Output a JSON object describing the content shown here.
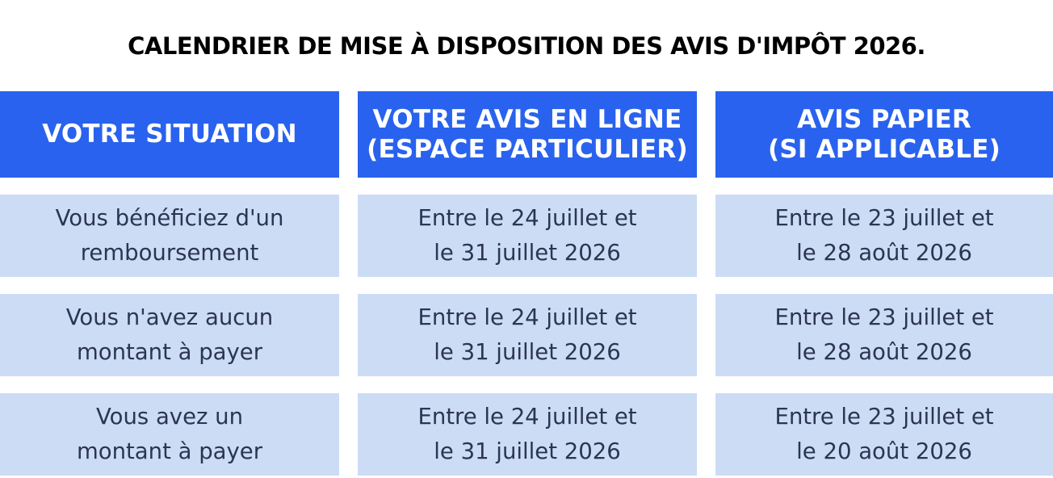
{
  "title": "CALENDRIER DE MISE À DISPOSITION DES AVIS D'IMPÔT 2026.",
  "headers": [
    {
      "lines": [
        "VOTRE SITUATION"
      ]
    },
    {
      "lines": [
        "VOTRE AVIS EN LIGNE",
        "(ESPACE PARTICULIER)"
      ]
    },
    {
      "lines": [
        "AVIS PAPIER",
        "(SI APPLICABLE)"
      ]
    }
  ],
  "rows": [
    {
      "situation": [
        "Vous bénéficiez d'un",
        "remboursement"
      ],
      "online": [
        "Entre le 24 juillet et",
        "le 31 juillet 2026"
      ],
      "paper": [
        "Entre le 23 juillet et",
        "le 28 août 2026"
      ]
    },
    {
      "situation": [
        "Vous n'avez aucun",
        "montant à payer"
      ],
      "online": [
        "Entre le 24 juillet et",
        "le 31 juillet 2026"
      ],
      "paper": [
        "Entre le 23 juillet et",
        "le 28 août 2026"
      ]
    },
    {
      "situation": [
        "Vous avez un",
        "montant à payer"
      ],
      "online": [
        "Entre le 24 juillet et",
        "le 31 juillet 2026"
      ],
      "paper": [
        "Entre le 23 juillet et",
        "le 20 août 2026"
      ]
    }
  ],
  "colors": {
    "header_bg": "#2962ee",
    "header_text": "#ffffff",
    "cell_bg": "#cddcf5",
    "cell_text": "#2b3553",
    "title_text": "#000000"
  }
}
